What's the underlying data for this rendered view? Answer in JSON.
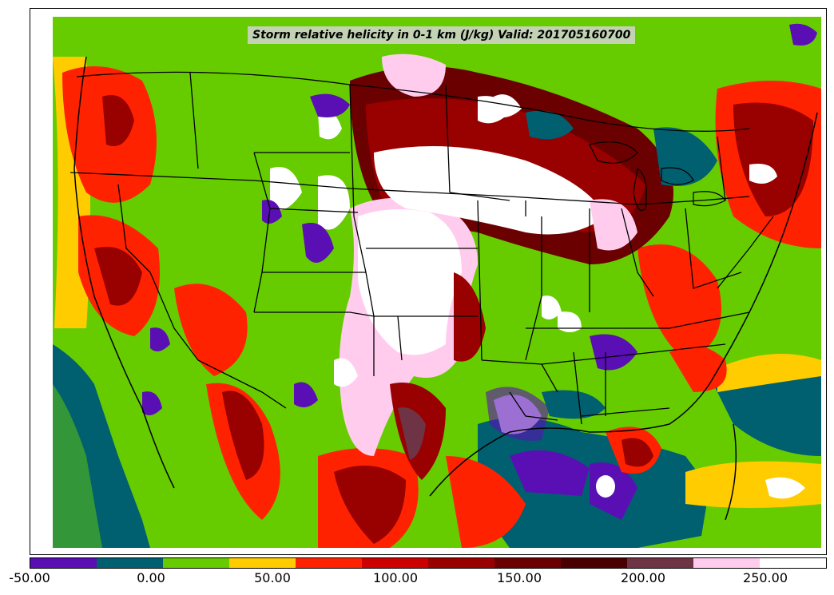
{
  "title": "Storm relative helicity in 0-1 km (J/kg) Valid: 201705160700",
  "colorbar": {
    "colors": [
      "#5a0fb4",
      "#006070",
      "#66cc00",
      "#ffcc00",
      "#ff2200",
      "#cc0000",
      "#990000",
      "#6b0000",
      "#4a0000",
      "#6e3345",
      "#ffccee",
      "#ffffff"
    ],
    "tick_labels": [
      "-50.00",
      "0.00",
      "50.00",
      "100.00",
      "150.00",
      "200.00",
      "250.00"
    ]
  },
  "map": {
    "background": "#66cc00"
  }
}
